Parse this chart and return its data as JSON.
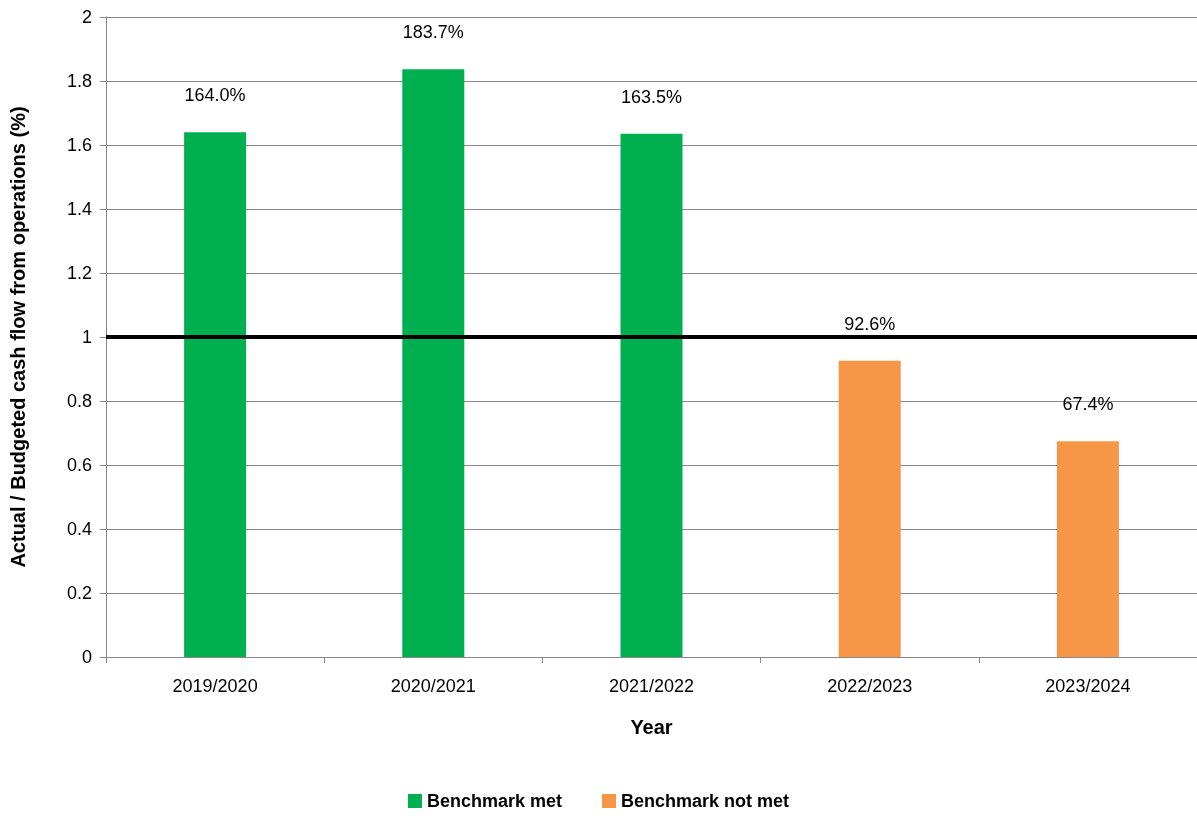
{
  "chart_data": {
    "type": "bar",
    "xlabel": "Year",
    "ylabel": "Actual / Budgeted cash flow from operations (%)",
    "categories": [
      "2019/2020",
      "2020/2021",
      "2021/2022",
      "2022/2023",
      "2023/2024"
    ],
    "series": [
      {
        "name": "Benchmark met",
        "color": "#00b050",
        "values": [
          1.64,
          1.837,
          1.635,
          null,
          null
        ],
        "value_labels": [
          "164.0%",
          "183.7%",
          "163.5%",
          null,
          null
        ]
      },
      {
        "name": "Benchmark not met",
        "color": "#f79646",
        "values": [
          null,
          null,
          null,
          0.926,
          0.674
        ],
        "value_labels": [
          null,
          null,
          null,
          "92.6%",
          "67.4%"
        ]
      }
    ],
    "ylim": [
      0,
      2
    ],
    "yticks": [
      0,
      0.2,
      0.4,
      0.6,
      0.8,
      1,
      1.2,
      1.4,
      1.6,
      1.8,
      2
    ],
    "grid": "y",
    "legend": "bottom",
    "ref_lines": [
      {
        "axis": "y",
        "value": 1,
        "color": "#000000"
      }
    ]
  }
}
